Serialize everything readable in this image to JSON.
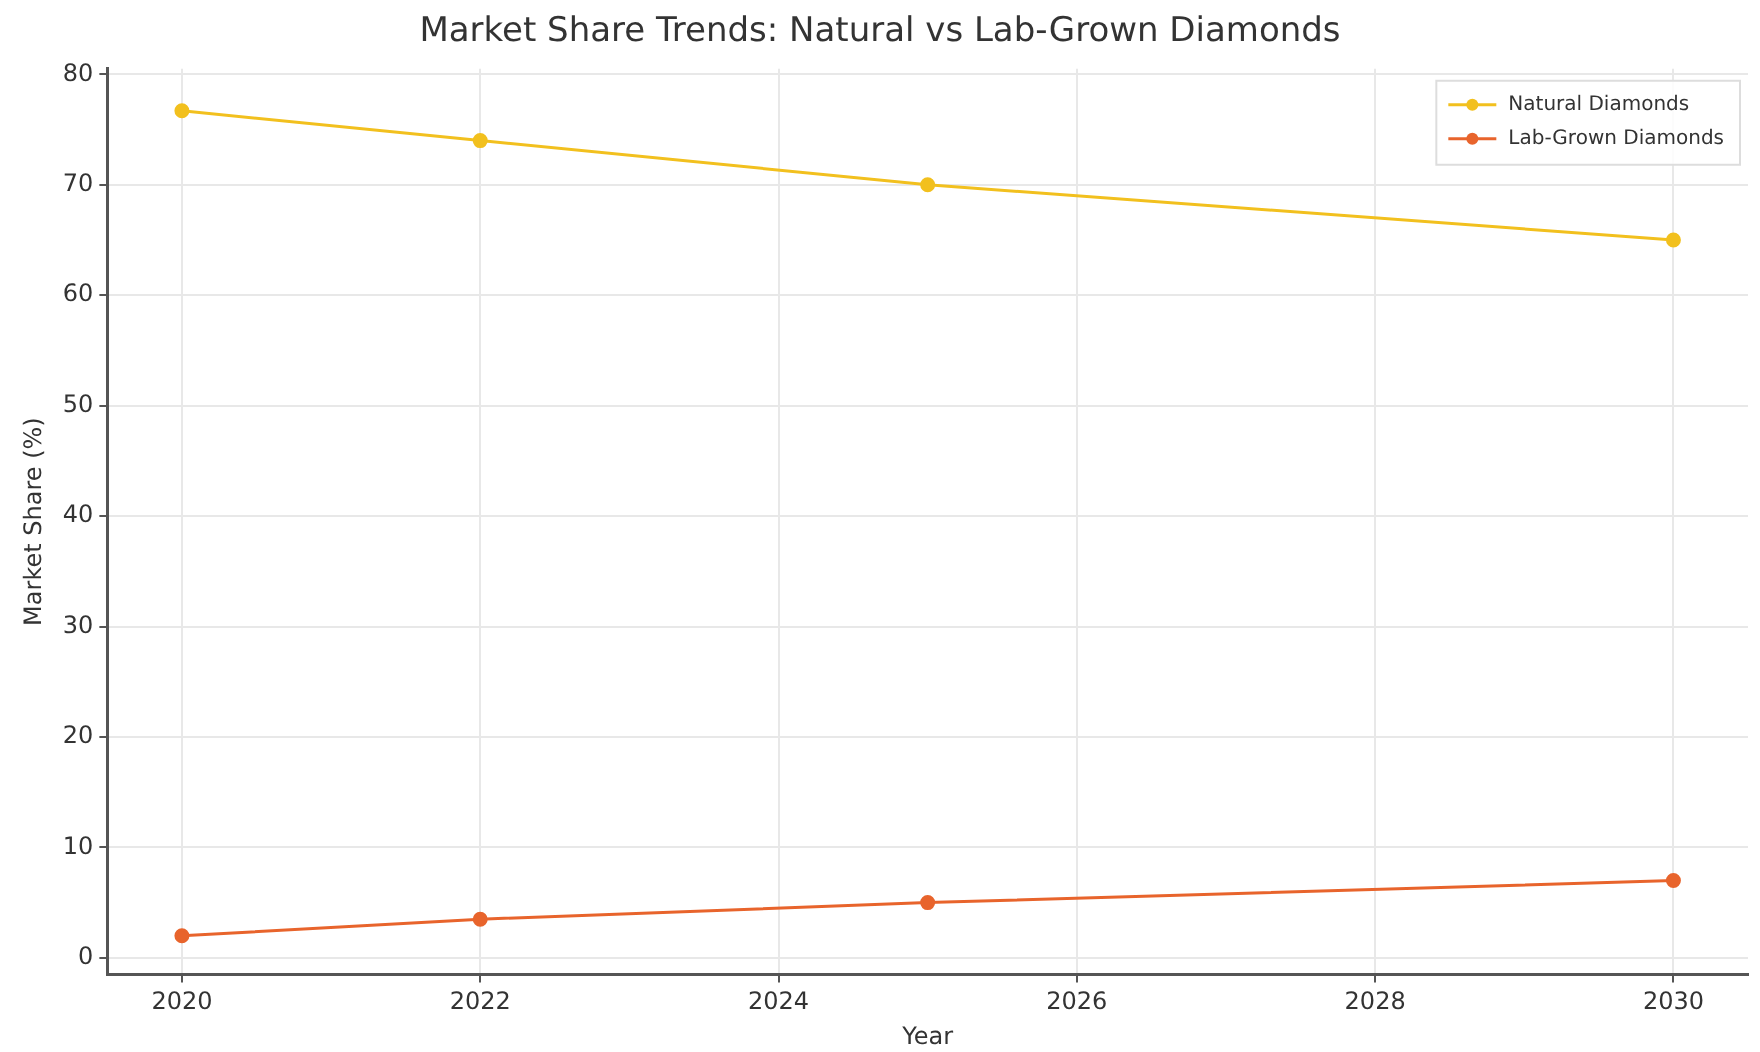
{
  "chart_data": {
    "type": "line",
    "title": "Market Share Trends: Natural vs Lab-Grown Diamonds",
    "xlabel": "Year",
    "ylabel": "Market Share (%)",
    "x": [
      2020,
      2022,
      2025,
      2030
    ],
    "series": [
      {
        "name": "Natural Diamonds",
        "color": "#f2c01e",
        "values": [
          76.7,
          74,
          70,
          65
        ]
      },
      {
        "name": "Lab-Grown Diamonds",
        "color": "#e8642c",
        "values": [
          2,
          3.5,
          5,
          7
        ]
      }
    ],
    "xlim": [
      2019.5,
      2030.5
    ],
    "xticks": [
      2020,
      2022,
      2024,
      2026,
      2028,
      2030
    ],
    "ylim": [
      -1.5,
      80.5
    ],
    "yticks": [
      0,
      10,
      20,
      30,
      40,
      50,
      60,
      70,
      80
    ],
    "grid": true,
    "legend": "top right",
    "marker": "circle",
    "line_style": "solid"
  }
}
